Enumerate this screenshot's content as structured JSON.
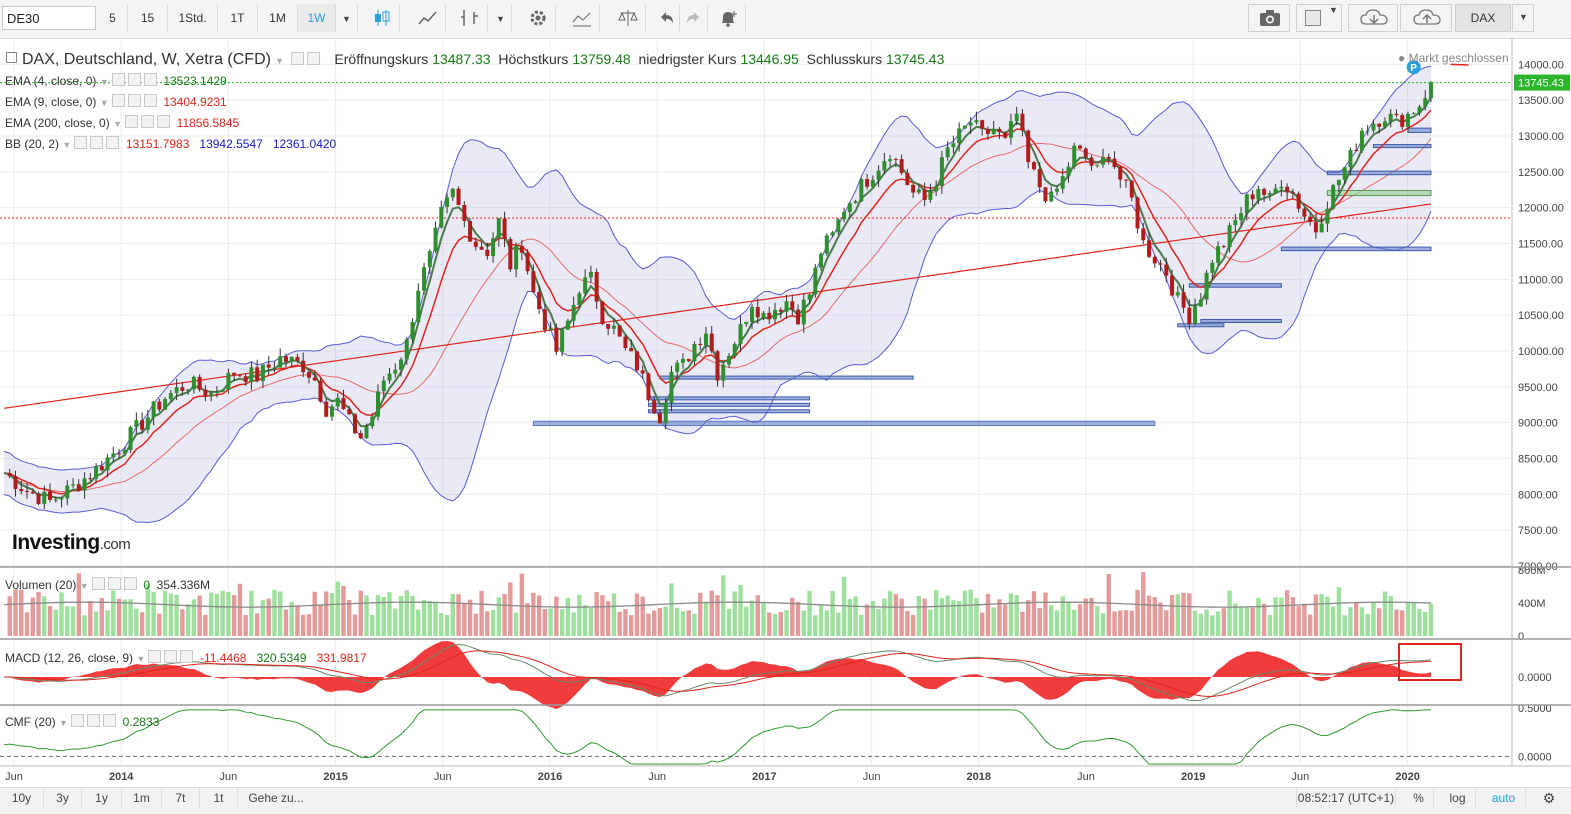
{
  "toolbar": {
    "symbol": "DE30",
    "intervals": [
      "5",
      "15",
      "1Std.",
      "1T",
      "1M",
      "1W"
    ],
    "active_interval": "1W",
    "exchange": "DAX"
  },
  "header": {
    "title": "DAX, Deutschland, W, Xetra (CFD)",
    "open_label": "Eröffnungskurs",
    "open_value": "13487.33",
    "high_label": "Höchstkurs",
    "high_value": "13759.48",
    "low_label": "niedrigster Kurs",
    "low_value": "13446.95",
    "close_label": "Schlusskurs",
    "close_value": "13745.43",
    "market_status": "Markt geschlossen"
  },
  "indicators": {
    "ema4": {
      "label": "EMA (4, close, 0)",
      "value": "13523.1429",
      "color": "#1a7a1a"
    },
    "ema9": {
      "label": "EMA (9, close, 0)",
      "value": "13404.9231",
      "color": "#e0251b"
    },
    "ema200": {
      "label": "EMA (200, close, 0)",
      "value": "11856.5845",
      "color": "#e0251b"
    },
    "bb": {
      "label": "BB (20, 2)",
      "v1": "13151.7983",
      "v2": "13942.5547",
      "v3": "12361.0420"
    }
  },
  "volume": {
    "label": "Volumen (20)",
    "v1": "0",
    "v2": "354.336M",
    "axis": [
      "800M",
      "400M",
      "0"
    ]
  },
  "macd": {
    "label": "MACD (12, 26, close, 9)",
    "v1": "-11.4468",
    "v2": "320.5349",
    "v3": "331.9817",
    "axis": [
      "0.0000"
    ]
  },
  "cmf": {
    "label": "CMF (20)",
    "value": "0.2833",
    "axis": [
      "0.5000",
      "0.0000"
    ]
  },
  "price_tag": "13745.43",
  "logo": "Investing.com",
  "bottom": {
    "ranges": [
      "10y",
      "3y",
      "1y",
      "1m",
      "7t",
      "1t"
    ],
    "goto": "Gehe zu...",
    "time": "08:52:17 (UTC+1)",
    "pct": "%",
    "log": "log",
    "auto": "auto"
  },
  "chart_data": {
    "type": "line",
    "title": "DAX, Deutschland, W, Xetra (CFD)",
    "y_ticks": [
      14000,
      13500,
      13000,
      12500,
      12000,
      11500,
      11000,
      10500,
      10000,
      9500,
      9000,
      8500,
      8000,
      7500,
      7000
    ],
    "ylim": [
      7000,
      14200
    ],
    "x_labels": [
      "Jun",
      "2014",
      "Jun",
      "2015",
      "Jun",
      "2016",
      "Jun",
      "2017",
      "Jun",
      "2018",
      "Jun",
      "2019",
      "Jun",
      "2020"
    ],
    "last_price": 13745.43,
    "reference_lines": [
      11856.58,
      13745.43
    ],
    "series": [
      {
        "name": "DAX",
        "points": [
          [
            0,
            8300
          ],
          [
            4,
            8050
          ],
          [
            8,
            7900
          ],
          [
            12,
            8100
          ],
          [
            16,
            8350
          ],
          [
            20,
            8650
          ],
          [
            24,
            9000
          ],
          [
            28,
            9350
          ],
          [
            32,
            9550
          ],
          [
            36,
            9400
          ],
          [
            40,
            9700
          ],
          [
            44,
            9650
          ],
          [
            48,
            9900
          ],
          [
            52,
            9800
          ],
          [
            54,
            9600
          ],
          [
            56,
            9200
          ],
          [
            58,
            9300
          ],
          [
            60,
            9000
          ],
          [
            62,
            8800
          ],
          [
            64,
            9100
          ],
          [
            66,
            9600
          ],
          [
            68,
            9800
          ],
          [
            70,
            10100
          ],
          [
            72,
            10900
          ],
          [
            74,
            11300
          ],
          [
            76,
            11900
          ],
          [
            78,
            12200
          ],
          [
            80,
            11800
          ],
          [
            82,
            11500
          ],
          [
            84,
            11400
          ],
          [
            86,
            11800
          ],
          [
            88,
            11200
          ],
          [
            90,
            11500
          ],
          [
            92,
            10800
          ],
          [
            94,
            10400
          ],
          [
            96,
            10000
          ],
          [
            98,
            10400
          ],
          [
            100,
            10900
          ],
          [
            102,
            11000
          ],
          [
            104,
            10500
          ],
          [
            106,
            10300
          ],
          [
            108,
            10000
          ],
          [
            110,
            9800
          ],
          [
            112,
            9400
          ],
          [
            114,
            9100
          ],
          [
            116,
            9700
          ],
          [
            118,
            9800
          ],
          [
            120,
            10100
          ],
          [
            122,
            10300
          ],
          [
            124,
            9700
          ],
          [
            126,
            10000
          ],
          [
            128,
            10300
          ],
          [
            130,
            10700
          ],
          [
            132,
            10500
          ],
          [
            134,
            10600
          ],
          [
            136,
            10700
          ],
          [
            138,
            10500
          ],
          [
            140,
            10800
          ],
          [
            142,
            11400
          ],
          [
            144,
            11600
          ],
          [
            146,
            12000
          ],
          [
            148,
            12200
          ],
          [
            150,
            12400
          ],
          [
            152,
            12600
          ],
          [
            154,
            12800
          ],
          [
            156,
            12500
          ],
          [
            158,
            12200
          ],
          [
            160,
            12100
          ],
          [
            162,
            12400
          ],
          [
            164,
            12800
          ],
          [
            166,
            13000
          ],
          [
            168,
            13200
          ],
          [
            170,
            13000
          ],
          [
            172,
            13100
          ],
          [
            174,
            12900
          ],
          [
            176,
            13300
          ],
          [
            178,
            12600
          ],
          [
            180,
            12300
          ],
          [
            182,
            12100
          ],
          [
            184,
            12400
          ],
          [
            186,
            12800
          ],
          [
            188,
            12700
          ],
          [
            190,
            12500
          ],
          [
            192,
            12800
          ],
          [
            194,
            12400
          ],
          [
            196,
            12100
          ],
          [
            198,
            11500
          ],
          [
            200,
            11300
          ],
          [
            202,
            11100
          ],
          [
            204,
            10700
          ],
          [
            206,
            10500
          ],
          [
            208,
            10800
          ],
          [
            210,
            11300
          ],
          [
            212,
            11500
          ],
          [
            214,
            11800
          ],
          [
            216,
            12100
          ],
          [
            218,
            12300
          ],
          [
            220,
            12100
          ],
          [
            222,
            12400
          ],
          [
            224,
            12200
          ],
          [
            226,
            11900
          ],
          [
            228,
            11700
          ],
          [
            230,
            12100
          ],
          [
            232,
            12400
          ],
          [
            234,
            12700
          ],
          [
            236,
            13100
          ],
          [
            238,
            13200
          ],
          [
            240,
            13300
          ],
          [
            242,
            13200
          ],
          [
            244,
            13300
          ],
          [
            246,
            13450
          ],
          [
            248,
            13745
          ]
        ]
      }
    ],
    "volume_ylim": [
      0,
      800
    ],
    "macd_zero": 0,
    "cmf_ylim": [
      -0.1,
      0.5
    ]
  }
}
